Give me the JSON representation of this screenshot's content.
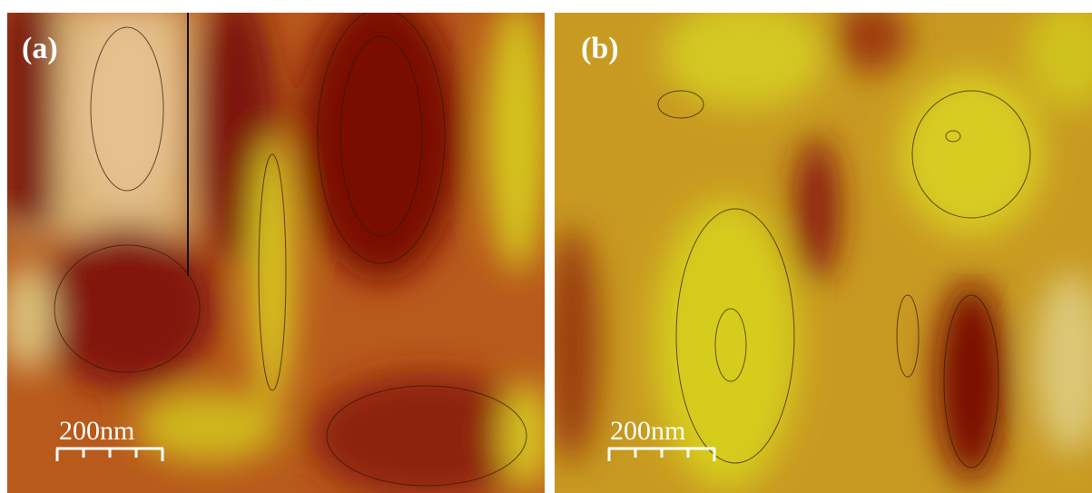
{
  "panels": [
    {
      "label": "(a)",
      "scale_bar": "200nm"
    },
    {
      "label": "(b)",
      "scale_bar": "200nm"
    }
  ]
}
